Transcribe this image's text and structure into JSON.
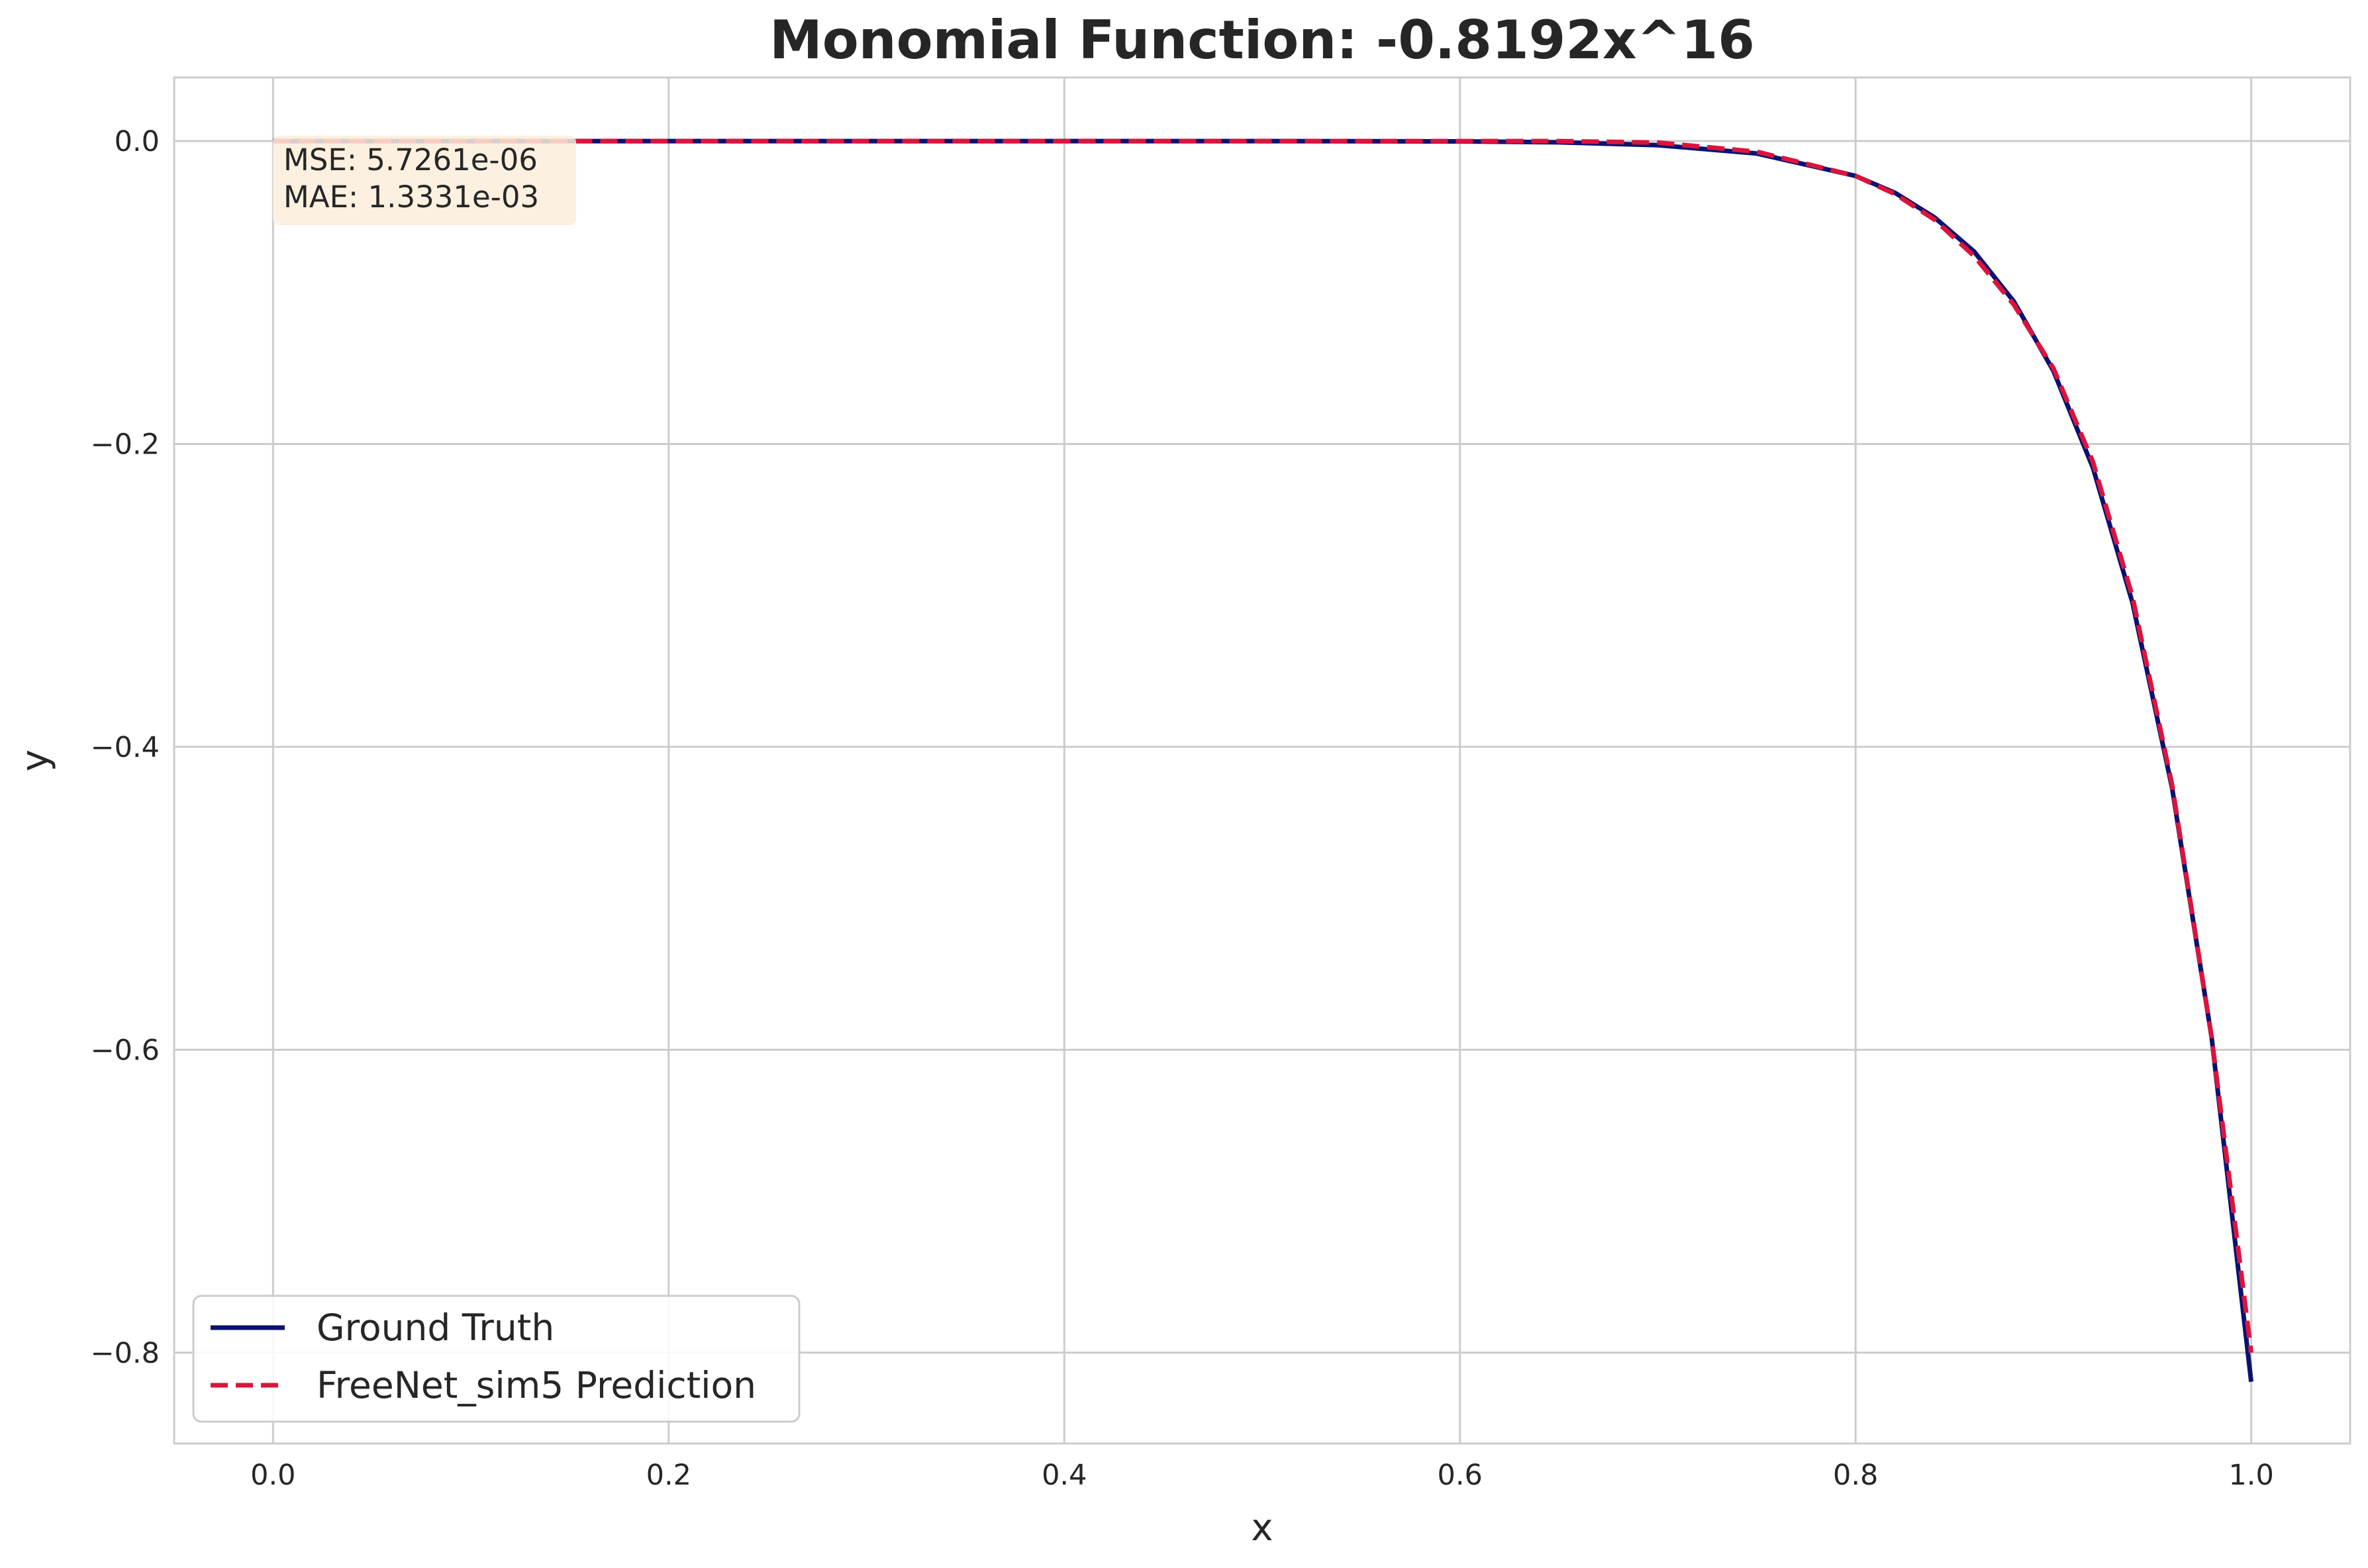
{
  "chart_data": {
    "type": "line",
    "title": "Monomial Function: -0.8192x^16",
    "xlabel": "x",
    "ylabel": "y",
    "xlim": [
      -0.05,
      1.05
    ],
    "ylim": [
      -0.86,
      0.042
    ],
    "grid": true,
    "x_ticks": [
      0.0,
      0.2,
      0.4,
      0.6,
      0.8,
      1.0
    ],
    "y_ticks": [
      0.0,
      -0.2,
      -0.4,
      -0.6,
      -0.8
    ],
    "x_tick_labels": [
      "0.0",
      "0.2",
      "0.4",
      "0.6",
      "0.8",
      "1.0"
    ],
    "y_tick_labels": [
      "0.0",
      "−0.2",
      "−0.4",
      "−0.6",
      "−0.8"
    ],
    "legend_position": "lower-left",
    "series": [
      {
        "name": "Ground Truth",
        "color": "#0a1172",
        "style": "solid",
        "x": [
          0.0,
          0.1,
          0.2,
          0.3,
          0.4,
          0.5,
          0.6,
          0.65,
          0.7,
          0.75,
          0.8,
          0.82,
          0.84,
          0.86,
          0.88,
          0.9,
          0.92,
          0.94,
          0.96,
          0.98,
          1.0
        ],
        "y": [
          0.0,
          0.0,
          0.0,
          0.0,
          0.0,
          0.0,
          -0.0002,
          -0.0008,
          -0.0027,
          -0.0082,
          -0.023,
          -0.0342,
          -0.0505,
          -0.0731,
          -0.1059,
          -0.1517,
          -0.2158,
          -0.3049,
          -0.427,
          -0.592,
          -0.8192
        ]
      },
      {
        "name": "FreeNet_sim5 Prediction",
        "color": "#dc143c",
        "style": "dashed",
        "x": [
          0.0,
          0.1,
          0.2,
          0.3,
          0.4,
          0.5,
          0.6,
          0.65,
          0.7,
          0.75,
          0.8,
          0.82,
          0.84,
          0.86,
          0.88,
          0.9,
          0.92,
          0.94,
          0.96,
          0.98,
          1.0
        ],
        "y": [
          0.0,
          0.0,
          0.0,
          0.0,
          0.0,
          0.0,
          0.0,
          0.0,
          -0.001,
          -0.007,
          -0.023,
          -0.035,
          -0.052,
          -0.076,
          -0.108,
          -0.15,
          -0.212,
          -0.301,
          -0.425,
          -0.592,
          -0.8
        ]
      }
    ],
    "annotations": [
      "MSE: 5.7261e-06",
      "MAE: 1.3331e-03"
    ],
    "annotation_background": "#fbeedb"
  }
}
